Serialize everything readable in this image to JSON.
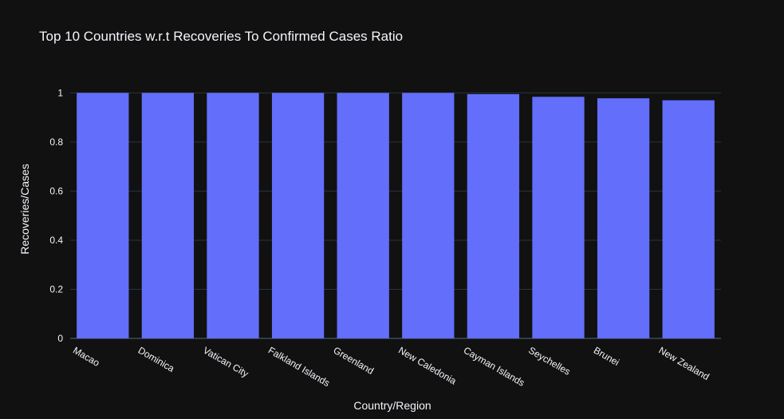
{
  "chart_data": {
    "type": "bar",
    "title": "Top 10 Countries w.r.t Recoveries To Confirmed Cases Ratio",
    "xlabel": "Country/Region",
    "ylabel": "Recoveries/Cases",
    "categories": [
      "Macao",
      "Dominica",
      "Vatican City",
      "Falkland Islands",
      "Greenland",
      "New Caledonia",
      "Cayman Islands",
      "Seychelles",
      "Brunei",
      "New Zealand"
    ],
    "values": [
      1.0,
      1.0,
      1.0,
      1.0,
      1.0,
      1.0,
      0.995,
      0.984,
      0.978,
      0.97
    ],
    "ylim": [
      0,
      1.05
    ],
    "yticks": [
      0,
      0.2,
      0.4,
      0.6,
      0.8,
      1
    ],
    "ytick_labels": [
      "0",
      "0.2",
      "0.4",
      "0.6",
      "0.8",
      "1"
    ],
    "grid": true,
    "legend": "none",
    "bar_color": "#636efa",
    "background_color": "#111111"
  }
}
